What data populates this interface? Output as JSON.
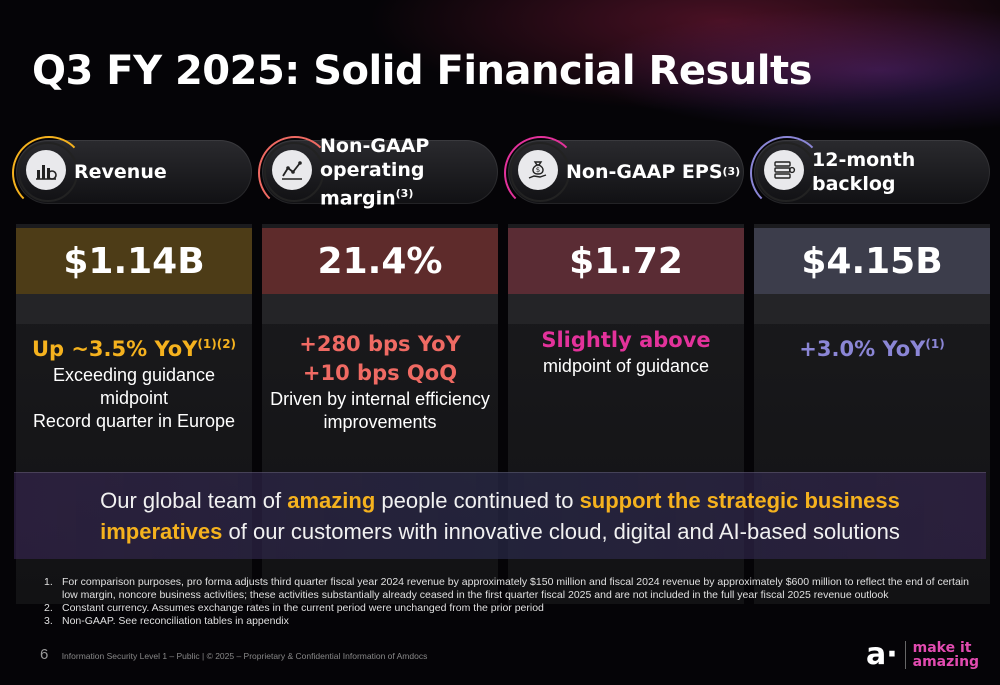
{
  "slide": {
    "title": "Q3 FY 2025: Solid Financial Results",
    "page_number": "6",
    "footer_text": "Information Security Level 1 – Public | © 2025 – Proprietary & Confidential Information of Amdocs",
    "logo_mark": "a·",
    "logo_tagline_1": "make it",
    "logo_tagline_2": "amazing"
  },
  "metrics": [
    {
      "label": "Revenue",
      "label_sup": "",
      "icon": "bar-chart-icon",
      "value": "$1.14B",
      "highlight_lines": [
        "Up ~3.5% YoY"
      ],
      "highlight_sup": "(1)(2)",
      "detail_lines": [
        "Exceeding guidance",
        "midpoint",
        "Record quarter in Europe"
      ],
      "accent": "#f5b21e",
      "value_bg": "#4d3c17"
    },
    {
      "label_lines": [
        "Non-GAAP",
        "operating margin"
      ],
      "label_sup": "(3)",
      "icon": "line-chart-icon",
      "value": "21.4%",
      "highlight_lines": [
        "+280 bps YoY",
        "+10 bps QoQ"
      ],
      "detail_lines": [
        "Driven by internal efficiency",
        "improvements"
      ],
      "accent": "#ef6a63",
      "value_bg": "#5e2b2b"
    },
    {
      "label": "Non-GAAP EPS",
      "label_sup": "(3)",
      "icon": "money-bag-hand-icon",
      "value": "$1.72",
      "highlight_lines": [
        "Slightly above"
      ],
      "detail_lines": [
        "midpoint of guidance"
      ],
      "accent": "#e3329b",
      "value_bg": "#5a2c34"
    },
    {
      "label": "12-month backlog",
      "label_sup": "",
      "icon": "server-stack-icon",
      "value": "$4.15B",
      "highlight_lines": [
        "+3.0% YoY"
      ],
      "highlight_sup": "(1)",
      "detail_lines": [],
      "accent": "#8b86d6",
      "value_bg": "#3c3d4b"
    }
  ],
  "banner": {
    "line1_a": "Our global team of ",
    "line1_b": "amazing",
    "line1_c": " people continued to ",
    "line1_d": "support the strategic business",
    "line2_a": "imperatives",
    "line2_b": " of our customers with innovative cloud, digital and AI-based solutions"
  },
  "footnotes": [
    {
      "num": "1.",
      "text": "For comparison purposes, pro forma adjusts third quarter fiscal year 2024 revenue by approximately $150 million and fiscal 2024 revenue by approximately $600 million to reflect the end of certain low margin, noncore business activities; these activities substantially already ceased in the first quarter fiscal 2025 and are not included in the full year fiscal 2025 revenue outlook"
    },
    {
      "num": "2.",
      "text": "Constant currency. Assumes exchange rates in the current period were unchanged from the prior period"
    },
    {
      "num": "3.",
      "text": "Non-GAAP. See reconciliation tables in appendix"
    }
  ]
}
